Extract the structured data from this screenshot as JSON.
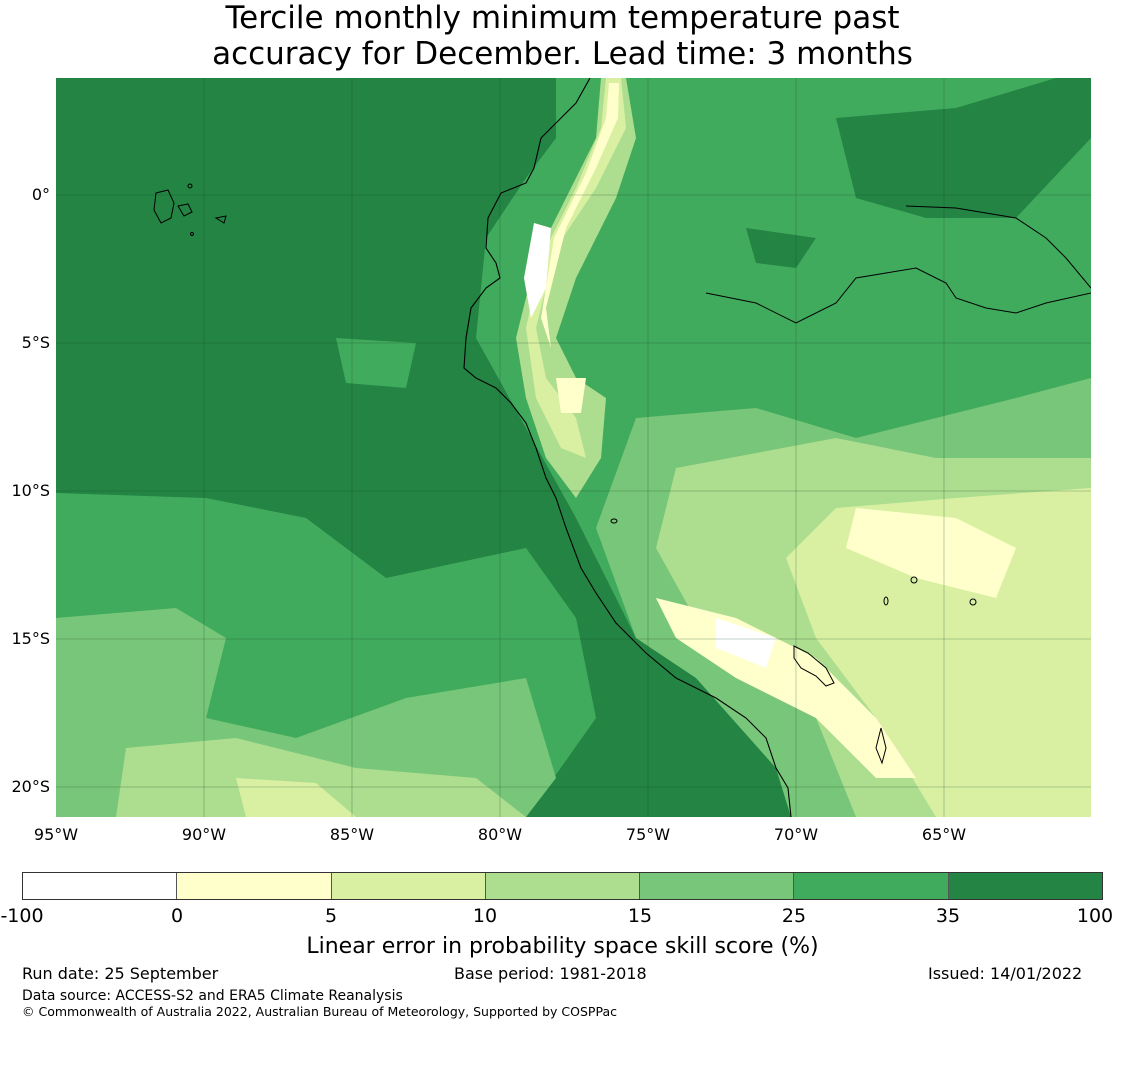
{
  "title_line1": "Tercile monthly minimum temperature past",
  "title_line2": "accuracy for December. Lead time: 3 months",
  "map": {
    "lat_labels": [
      "0°",
      "5°S",
      "10°S",
      "15°S",
      "20°S"
    ],
    "lon_labels": [
      "95°W",
      "90°W",
      "85°W",
      "80°W",
      "75°W",
      "70°W",
      "65°W"
    ]
  },
  "colorbar": {
    "ticks": [
      "-100",
      "0",
      "5",
      "10",
      "15",
      "25",
      "35",
      "100"
    ],
    "colors": [
      "#ffffff",
      "#ffffcc",
      "#d9f0a3",
      "#addd8e",
      "#78c679",
      "#41ab5d",
      "#238443"
    ],
    "label": "Linear error in probability space skill score (%)"
  },
  "footer": {
    "run_date": "Run date: 25 September",
    "base_period": "Base period: 1981-2018",
    "issued": "Issued: 14/01/2022",
    "data_source": "Data source: ACCESS-S2 and ERA5 Climate Reanalysis",
    "copyright": "© Commonwealth of Australia 2022, Australian Bureau of Meteorology, Supported by COSPPac"
  }
}
